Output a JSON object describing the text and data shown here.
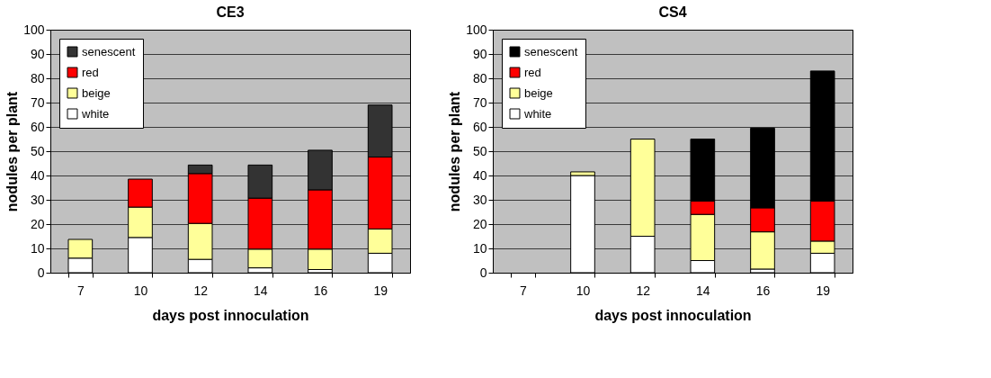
{
  "chart_data": [
    {
      "type": "bar",
      "stacked": true,
      "title": "CE3",
      "xlabel": "days post innoculation",
      "ylabel": "nodules per plant",
      "categories": [
        "7",
        "10",
        "12",
        "14",
        "16",
        "19"
      ],
      "ylim": [
        0,
        100
      ],
      "yticks": [
        0,
        10,
        20,
        30,
        40,
        50,
        60,
        70,
        80,
        90,
        100
      ],
      "grid": "y",
      "legend": "top left",
      "series": [
        {
          "name": "white",
          "color": "#ffffff",
          "values": [
            6,
            14.5,
            5.5,
            2,
            1.3,
            8
          ]
        },
        {
          "name": "beige",
          "color": "#ffff99",
          "values": [
            7.7,
            12.5,
            14.8,
            7.7,
            8.4,
            10
          ]
        },
        {
          "name": "red",
          "color": "#ff0000",
          "values": [
            null,
            11.5,
            20.5,
            21,
            24.4,
            29.6
          ]
        },
        {
          "name": "senescent",
          "color": "#333333",
          "values": [
            null,
            null,
            3.5,
            13.6,
            16.3,
            21.4
          ]
        }
      ]
    },
    {
      "type": "bar",
      "stacked": true,
      "title": "CS4",
      "xlabel": "days post innoculation",
      "ylabel": "nodules per plant",
      "categories": [
        "7",
        "10",
        "12",
        "14",
        "16",
        "19"
      ],
      "ylim": [
        0,
        100
      ],
      "yticks": [
        0,
        10,
        20,
        30,
        40,
        50,
        60,
        70,
        80,
        90,
        100
      ],
      "grid": "y",
      "legend": "top left",
      "series": [
        {
          "name": "white",
          "color": "#ffffff",
          "values": [
            null,
            40,
            15,
            5,
            1.5,
            8
          ]
        },
        {
          "name": "beige",
          "color": "#ffff99",
          "values": [
            null,
            1.5,
            40,
            19,
            15.3,
            5
          ]
        },
        {
          "name": "red",
          "color": "#ff0000",
          "values": [
            null,
            null,
            null,
            5.5,
            9.9,
            16.5
          ]
        },
        {
          "name": "senescent",
          "color": "#000000",
          "values": [
            null,
            null,
            null,
            25.5,
            32.8,
            53.5
          ]
        }
      ]
    }
  ]
}
